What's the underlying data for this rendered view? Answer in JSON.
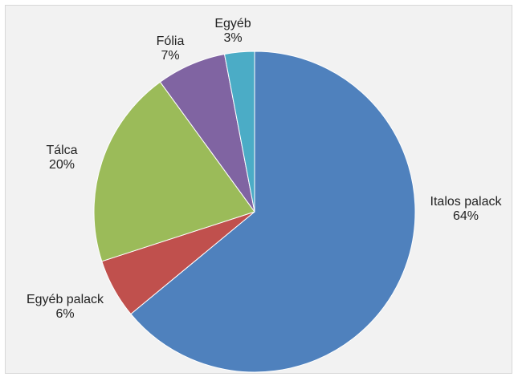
{
  "chart_data": {
    "type": "pie",
    "slices": [
      {
        "label": "Italos palack",
        "value": 64,
        "percent_label": "64%",
        "color": "#4f81bd"
      },
      {
        "label": "Egyéb palack",
        "value": 6,
        "percent_label": "6%",
        "color": "#c0504d"
      },
      {
        "label": "Tálca",
        "value": 20,
        "percent_label": "20%",
        "color": "#9bbb59"
      },
      {
        "label": "Fólia",
        "value": 7,
        "percent_label": "7%",
        "color": "#8064a2"
      },
      {
        "label": "Egyéb",
        "value": 3,
        "percent_label": "3%",
        "color": "#4bacc6"
      }
    ],
    "start": "12 o'clock",
    "direction": "clockwise",
    "legend": "none",
    "data_labels": "outside"
  }
}
